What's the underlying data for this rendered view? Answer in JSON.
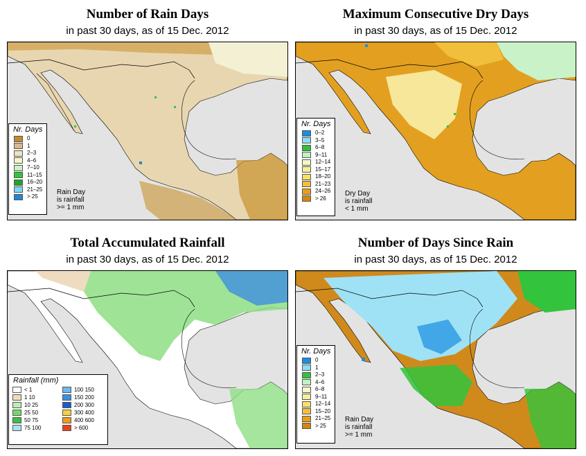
{
  "panels": [
    {
      "title": "Number of Rain Days",
      "subtitle": "in past 30 days, as of  15 Dec. 2012",
      "legend_title": "Nr. Days",
      "legend_items": [
        {
          "label": "0",
          "color": "#c8882a"
        },
        {
          "label": "1",
          "color": "#d7b98a"
        },
        {
          "label": "2–3",
          "color": "#efe3c4"
        },
        {
          "label": "4–6",
          "color": "#f6f6c9"
        },
        {
          "label": "7–10",
          "color": "#c9f2bf"
        },
        {
          "label": "11–15",
          "color": "#33c33c"
        },
        {
          "label": "16–20",
          "color": "#1ea62a"
        },
        {
          "label": "21–25",
          "color": "#7fd7f4"
        },
        {
          "label": "> 25",
          "color": "#1f86d6"
        }
      ],
      "note": [
        "Rain Day",
        "is rainfall",
        ">= 1 mm"
      ]
    },
    {
      "title": "Maximum Consecutive Dry Days",
      "subtitle": "in past 30 days, as of  15 Dec. 2012",
      "legend_title": "Nr. Days",
      "legend_items": [
        {
          "label": "0–2",
          "color": "#1a8ee0"
        },
        {
          "label": "3–5",
          "color": "#8fdcf6"
        },
        {
          "label": "6–8",
          "color": "#2fbf3a"
        },
        {
          "label": "9–11",
          "color": "#bff2c0"
        },
        {
          "label": "12–14",
          "color": "#f6f6c9"
        },
        {
          "label": "15–17",
          "color": "#f7ef9a"
        },
        {
          "label": "18–20",
          "color": "#f7e06a"
        },
        {
          "label": "21–23",
          "color": "#f2bf3c"
        },
        {
          "label": "24–26",
          "color": "#e79f1a"
        },
        {
          "label": "> 26",
          "color": "#d4860f"
        }
      ],
      "note": [
        "Dry Day",
        "is rainfall",
        "< 1 mm"
      ]
    },
    {
      "title": "Total Accumulated Rainfall",
      "subtitle": "in past 30 days, as of  15 Dec. 2012",
      "legend_title": "Rainfall (mm)",
      "legend_items": [
        {
          "label": "< 1",
          "color": "#ffffff"
        },
        {
          "label": "100  150",
          "color": "#6ab8ef"
        },
        {
          "label": "1   10",
          "color": "#efdcc0"
        },
        {
          "label": "150  200",
          "color": "#3d8fe0"
        },
        {
          "label": "10   25",
          "color": "#b9f0b0"
        },
        {
          "label": "200  300",
          "color": "#1a5ec8"
        },
        {
          "label": "25   50",
          "color": "#72d86e"
        },
        {
          "label": "300  400",
          "color": "#f5d23c"
        },
        {
          "label": "50   75",
          "color": "#3ebd47"
        },
        {
          "label": "400  600",
          "color": "#f19a1e"
        },
        {
          "label": "75  100",
          "color": "#a9e2f6"
        },
        {
          "label": "> 600",
          "color": "#e8431c"
        }
      ]
    },
    {
      "title": "Number of Days Since Rain",
      "subtitle": "in past 30 days, as of  15 Dec. 2012",
      "legend_title": "Nr. Days",
      "legend_items": [
        {
          "label": "0",
          "color": "#1a8ee0"
        },
        {
          "label": "1",
          "color": "#8fdcf6"
        },
        {
          "label": "2–3",
          "color": "#33c33c"
        },
        {
          "label": "4–6",
          "color": "#bff2c0"
        },
        {
          "label": "6–8",
          "color": "#f6f6c9"
        },
        {
          "label": "9–11",
          "color": "#f7ef9a"
        },
        {
          "label": "12–14",
          "color": "#f7e06a"
        },
        {
          "label": "15–20",
          "color": "#f2bf3c"
        },
        {
          "label": "21–25",
          "color": "#e79f1a"
        },
        {
          "label": "> 25",
          "color": "#d4860f"
        }
      ],
      "note": [
        "Rain Day",
        "is rainfall",
        ">= 1 mm"
      ]
    }
  ],
  "map_colors": {
    "ocean": "#e3e3e3",
    "p1_land": "#e8d6b0",
    "p1_dark": "#c8922e",
    "p1_light": "#f4f0d4",
    "p2_land": "#e3a020",
    "p2_light": "#f6e79a",
    "p2_green": "#c9f2c9",
    "p3_land": "#ffffff",
    "p3_green": "#8ede85",
    "p3_blue": "#3d8fe0",
    "p4_land": "#d08a1c",
    "p4_cyan": "#9fe2f6",
    "p4_green": "#33c33c"
  }
}
